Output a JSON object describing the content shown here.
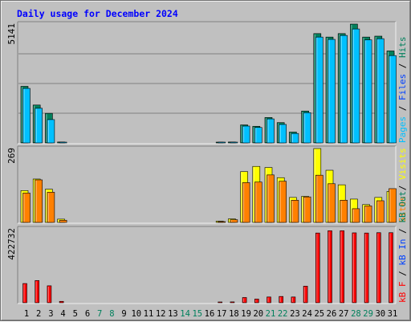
{
  "title": "Daily usage for December 2024",
  "chart_data": {
    "type": "bar",
    "title": "Daily usage for December 2024",
    "categories": [
      "1",
      "2",
      "3",
      "4",
      "5",
      "6",
      "7",
      "8",
      "9",
      "10",
      "11",
      "12",
      "13",
      "14",
      "15",
      "16",
      "17",
      "18",
      "19",
      "20",
      "21",
      "22",
      "23",
      "24",
      "25",
      "26",
      "27",
      "28",
      "29",
      "30",
      "31"
    ],
    "weekend_days": [
      "7",
      "8",
      "14",
      "15",
      "21",
      "22",
      "28",
      "29"
    ],
    "colors": {
      "hits": "#00805c",
      "files": "#0040ff",
      "pages": "#00c0ff",
      "visits": "#ffff00",
      "sites": "#ff8000",
      "kb_out": "#00805c",
      "kb_in": "#0040ff",
      "kb_f": "#ff0000",
      "weekday_label": "#000000",
      "weekend_label": "#00805c",
      "title": "#0000ff"
    },
    "panels": [
      {
        "name": "hits-files-pages",
        "ymax_label": "5141",
        "ymax": 5141,
        "legend": [
          {
            "text": "Pages",
            "color": "#00c0ff"
          },
          {
            "text": " / ",
            "color": "#000000"
          },
          {
            "text": "Files",
            "color": "#0040ff"
          },
          {
            "text": " / ",
            "color": "#000000"
          },
          {
            "text": "Hits",
            "color": "#00805c"
          }
        ],
        "series": [
          {
            "name": "Hits",
            "color": "#00805c",
            "values": [
              2450,
              1640,
              1280,
              40,
              0,
              0,
              0,
              0,
              0,
              0,
              0,
              0,
              0,
              0,
              0,
              0,
              30,
              40,
              780,
              720,
              1100,
              880,
              470,
              1380,
              4730,
              4580,
              4730,
              5141,
              4580,
              4620,
              3980
            ]
          },
          {
            "name": "Pages",
            "color": "#00c0ff",
            "values": [
              2360,
              1500,
              1010,
              30,
              0,
              0,
              0,
              0,
              0,
              0,
              0,
              0,
              0,
              0,
              0,
              0,
              20,
              30,
              730,
              670,
              1040,
              800,
              410,
              1310,
              4580,
              4480,
              4650,
              4930,
              4460,
              4510,
              3780
            ]
          }
        ]
      },
      {
        "name": "visits-sites",
        "ymax_label": "269",
        "ymax": 269,
        "legend": [
          {
            "text": "Sites",
            "color": "#ff8000"
          },
          {
            "text": " / ",
            "color": "#000000"
          },
          {
            "text": "Visits",
            "color": "#ffff00"
          }
        ],
        "series": [
          {
            "name": "Visits",
            "color": "#ffff00",
            "values": [
              116,
              158,
              121,
              12,
              0,
              0,
              0,
              0,
              0,
              0,
              0,
              0,
              0,
              0,
              0,
              0,
              5,
              13,
              185,
              204,
              200,
              163,
              91,
              95,
              269,
              190,
              137,
              85,
              65,
              91,
              113
            ]
          },
          {
            "name": "Sites",
            "color": "#ff8000",
            "values": [
              107,
              155,
              110,
              8,
              0,
              0,
              0,
              0,
              0,
              0,
              0,
              0,
              0,
              0,
              0,
              0,
              3,
              10,
              145,
              147,
              173,
              150,
              81,
              93,
              172,
              141,
              81,
              50,
              60,
              79,
              123
            ]
          }
        ]
      },
      {
        "name": "kbytes",
        "ymax_label": "422732",
        "ymax": 422732,
        "legend": [
          {
            "text": "kB F",
            "color": "#ff0000"
          },
          {
            "text": " / ",
            "color": "#000000"
          },
          {
            "text": "kB In",
            "color": "#0040ff"
          },
          {
            "text": " / ",
            "color": "#000000"
          },
          {
            "text": "kB Out",
            "color": "#00805c"
          }
        ],
        "series": [
          {
            "name": "kB F",
            "color": "#ff0000",
            "values": [
              110000,
              127000,
              97000,
              8000,
              0,
              0,
              0,
              0,
              0,
              0,
              0,
              0,
              0,
              0,
              0,
              0,
              4000,
              5000,
              30000,
              21000,
              33000,
              36000,
              33000,
              95000,
              399000,
              412000,
              412000,
              400000,
              399000,
              401000,
              401000
            ]
          }
        ]
      }
    ]
  }
}
